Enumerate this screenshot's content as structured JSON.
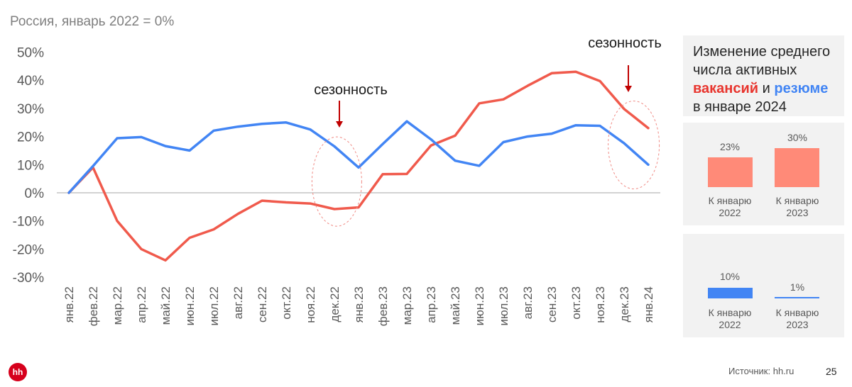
{
  "subtitle": "Россия, январь 2022 = 0%",
  "chart_data": [
    {
      "type": "line",
      "x": [
        "янв.22",
        "фев.22",
        "мар.22",
        "апр.22",
        "май.22",
        "июн.22",
        "июл.22",
        "авг.22",
        "сен.22",
        "окт.22",
        "ноя.22",
        "дек.22",
        "янв.23",
        "фев.23",
        "мар.23",
        "апр.23",
        "май.23",
        "июн.23",
        "июл.23",
        "авг.23",
        "сен.23",
        "окт.23",
        "ноя.23",
        "дек.23",
        "янв.24"
      ],
      "series": [
        {
          "name": "вакансий",
          "color": "#f05a4c",
          "values": [
            0,
            9,
            -10,
            -20,
            -24,
            -16,
            -13,
            -7.5,
            -2.8,
            -3.4,
            -3.8,
            -5.8,
            -5.2,
            6.6,
            6.7,
            16.8,
            20.3,
            31.8,
            33.2,
            38,
            42.5,
            43,
            39.7,
            29.8,
            23
          ]
        },
        {
          "name": "резюме",
          "color": "#4285f4",
          "values": [
            0,
            9.5,
            19.4,
            19.8,
            16.6,
            15,
            22.1,
            23.5,
            24.5,
            25,
            22.5,
            16.5,
            9,
            17.3,
            25.4,
            19,
            11.4,
            9.6,
            18,
            20,
            21,
            24,
            23.8,
            17.6,
            10
          ]
        }
      ],
      "ylim": [
        -30,
        50
      ],
      "yticks": [
        50,
        40,
        30,
        20,
        10,
        0,
        -10,
        -20,
        -30
      ],
      "ytick_labels": [
        "50%",
        "40%",
        "30%",
        "20%",
        "10%",
        "0%",
        "-10%",
        "-20%",
        "-30%"
      ],
      "annotations": [
        "сезонность",
        "сезонность"
      ]
    },
    {
      "type": "bar",
      "title": "Изменение среднего числа активных вакансий и резюме в январе 2024",
      "series_name": "вакансий",
      "color": "#ff8a78",
      "categories": [
        "К январю 2022",
        "К январю 2023"
      ],
      "values": [
        23,
        30
      ],
      "value_labels": [
        "23%",
        "30%"
      ]
    },
    {
      "type": "bar",
      "series_name": "резюме",
      "color": "#4285f4",
      "categories": [
        "К январю 2022",
        "К январю 2023"
      ],
      "values": [
        10,
        1
      ],
      "value_labels": [
        "10%",
        "1%"
      ]
    }
  ],
  "panel": {
    "title_line1": "Изменение среднего",
    "title_line2": "числа активных",
    "title_red": "вакансий",
    "title_and": " и ",
    "title_blue": "резюме",
    "title_line4": "в январе 2024",
    "cat1_line1": "К январю",
    "cat1_line2": "2022",
    "cat2_line1": "К январю",
    "cat2_line2": "2023"
  },
  "footer": {
    "logo": "hh",
    "source": "Источник: hh.ru",
    "page": "25"
  }
}
